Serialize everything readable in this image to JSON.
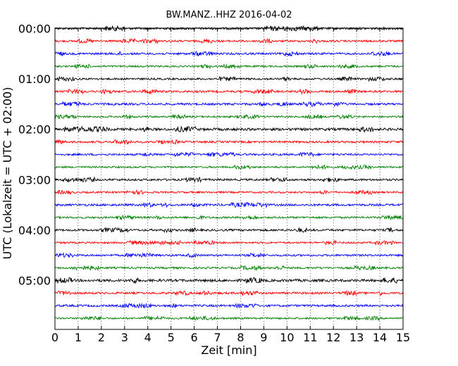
{
  "chart_data": {
    "type": "line",
    "title": "BW.MANZ..HHZ 2016-04-02",
    "xlabel": "Zeit  [min]",
    "ylabel": "UTC (Lokalzeit = UTC + 02:00)",
    "xlim": [
      0,
      15
    ],
    "x_ticks": [
      "0",
      "1",
      "2",
      "3",
      "4",
      "5",
      "6",
      "7",
      "8",
      "9",
      "10",
      "11",
      "12",
      "13",
      "14",
      "15"
    ],
    "y_ticks": [
      "00:00",
      "01:00",
      "02:00",
      "03:00",
      "04:00",
      "05:00"
    ],
    "grid": "vertical dotted",
    "trace_colors": [
      "#000000",
      "#ff0000",
      "#0000ff",
      "#008000"
    ],
    "series": [
      {
        "start": "00:00",
        "color": "#000000",
        "amplitude": 0.35
      },
      {
        "start": "00:15",
        "color": "#ff0000",
        "amplitude": 0.3
      },
      {
        "start": "00:30",
        "color": "#0000ff",
        "amplitude": 0.32
      },
      {
        "start": "00:45",
        "color": "#008000",
        "amplitude": 0.28
      },
      {
        "start": "01:00",
        "color": "#000000",
        "amplitude": 0.3
      },
      {
        "start": "01:15",
        "color": "#ff0000",
        "amplitude": 0.32
      },
      {
        "start": "01:30",
        "color": "#0000ff",
        "amplitude": 0.33
      },
      {
        "start": "01:45",
        "color": "#008000",
        "amplitude": 0.28
      },
      {
        "start": "02:00",
        "color": "#000000",
        "amplitude": 0.4
      },
      {
        "start": "02:15",
        "color": "#ff0000",
        "amplitude": 0.32
      },
      {
        "start": "02:30",
        "color": "#0000ff",
        "amplitude": 0.3
      },
      {
        "start": "02:45",
        "color": "#008000",
        "amplitude": 0.28
      },
      {
        "start": "03:00",
        "color": "#000000",
        "amplitude": 0.32
      },
      {
        "start": "03:15",
        "color": "#ff0000",
        "amplitude": 0.28
      },
      {
        "start": "03:30",
        "color": "#0000ff",
        "amplitude": 0.33
      },
      {
        "start": "03:45",
        "color": "#008000",
        "amplitude": 0.3
      },
      {
        "start": "04:00",
        "color": "#000000",
        "amplitude": 0.32
      },
      {
        "start": "04:15",
        "color": "#ff0000",
        "amplitude": 0.28
      },
      {
        "start": "04:30",
        "color": "#0000ff",
        "amplitude": 0.3
      },
      {
        "start": "04:45",
        "color": "#008000",
        "amplitude": 0.3
      },
      {
        "start": "05:00",
        "color": "#000000",
        "amplitude": 0.4
      },
      {
        "start": "05:15",
        "color": "#ff0000",
        "amplitude": 0.32
      },
      {
        "start": "05:30",
        "color": "#0000ff",
        "amplitude": 0.32
      },
      {
        "start": "05:45",
        "color": "#008000",
        "amplitude": 0.28
      }
    ]
  }
}
